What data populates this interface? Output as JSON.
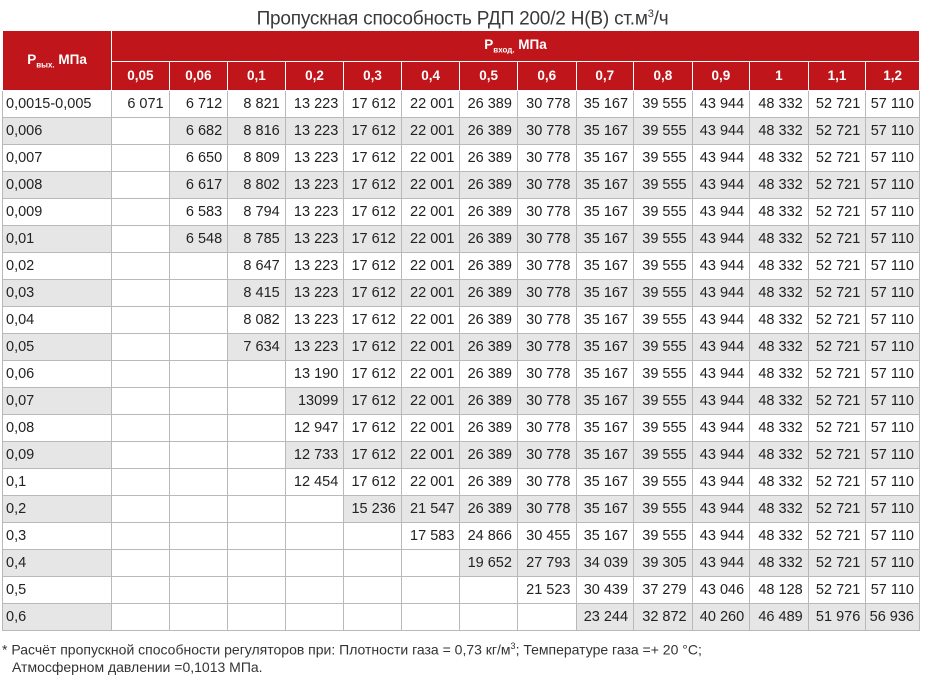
{
  "title": {
    "text": "Пропускная способность РДП 200/2 Н(В) ст.м",
    "sup": "3",
    "suffix": "/ч"
  },
  "table": {
    "row_header": {
      "main": "Р",
      "sub": "вых.",
      "unit": " МПа"
    },
    "group_header": {
      "main": "Р",
      "sub": "вход.",
      "unit": " МПа"
    },
    "columns": [
      "0,05",
      "0,06",
      "0,1",
      "0,2",
      "0,3",
      "0,4",
      "0,5",
      "0,6",
      "0,7",
      "0,8",
      "0,9",
      "1",
      "1,1",
      "1,2"
    ],
    "rows": [
      {
        "label": "0,0015-0,005",
        "values": [
          "6 071",
          "6 712",
          "8 821",
          "13 223",
          "17 612",
          "22 001",
          "26 389",
          "30 778",
          "35 167",
          "39 555",
          "43 944",
          "48 332",
          "52 721",
          "57 110"
        ]
      },
      {
        "label": "0,006",
        "values": [
          "",
          "6 682",
          "8 816",
          "13 223",
          "17 612",
          "22 001",
          "26 389",
          "30 778",
          "35 167",
          "39 555",
          "43 944",
          "48 332",
          "52 721",
          "57 110"
        ]
      },
      {
        "label": "0,007",
        "values": [
          "",
          "6 650",
          "8 809",
          "13 223",
          "17 612",
          "22 001",
          "26 389",
          "30 778",
          "35 167",
          "39 555",
          "43 944",
          "48 332",
          "52 721",
          "57 110"
        ]
      },
      {
        "label": "0,008",
        "values": [
          "",
          "6 617",
          "8 802",
          "13 223",
          "17 612",
          "22 001",
          "26 389",
          "30 778",
          "35 167",
          "39 555",
          "43 944",
          "48 332",
          "52 721",
          "57 110"
        ]
      },
      {
        "label": "0,009",
        "values": [
          "",
          "6 583",
          "8 794",
          "13 223",
          "17 612",
          "22 001",
          "26 389",
          "30 778",
          "35 167",
          "39 555",
          "43 944",
          "48 332",
          "52 721",
          "57 110"
        ]
      },
      {
        "label": "0,01",
        "values": [
          "",
          "6 548",
          "8 785",
          "13 223",
          "17 612",
          "22 001",
          "26 389",
          "30 778",
          "35 167",
          "39 555",
          "43 944",
          "48 332",
          "52 721",
          "57 110"
        ]
      },
      {
        "label": "0,02",
        "values": [
          "",
          "",
          "8 647",
          "13 223",
          "17 612",
          "22 001",
          "26 389",
          "30 778",
          "35 167",
          "39 555",
          "43 944",
          "48 332",
          "52 721",
          "57 110"
        ]
      },
      {
        "label": "0,03",
        "values": [
          "",
          "",
          "8 415",
          "13 223",
          "17 612",
          "22 001",
          "26 389",
          "30 778",
          "35 167",
          "39 555",
          "43 944",
          "48 332",
          "52 721",
          "57 110"
        ]
      },
      {
        "label": "0,04",
        "values": [
          "",
          "",
          "8 082",
          "13 223",
          "17 612",
          "22 001",
          "26 389",
          "30 778",
          "35 167",
          "39 555",
          "43 944",
          "48 332",
          "52 721",
          "57 110"
        ]
      },
      {
        "label": "0,05",
        "values": [
          "",
          "",
          "7 634",
          "13 223",
          "17 612",
          "22 001",
          "26 389",
          "30 778",
          "35 167",
          "39 555",
          "43 944",
          "48 332",
          "52 721",
          "57 110"
        ]
      },
      {
        "label": "0,06",
        "values": [
          "",
          "",
          "",
          "13 190",
          "17 612",
          "22 001",
          "26 389",
          "30 778",
          "35 167",
          "39 555",
          "43 944",
          "48 332",
          "52 721",
          "57 110"
        ]
      },
      {
        "label": "0,07",
        "values": [
          "",
          "",
          "",
          "13099",
          "17 612",
          "22 001",
          "26 389",
          "30 778",
          "35 167",
          "39 555",
          "43 944",
          "48 332",
          "52 721",
          "57 110"
        ]
      },
      {
        "label": "0,08",
        "values": [
          "",
          "",
          "",
          "12 947",
          "17 612",
          "22 001",
          "26 389",
          "30 778",
          "35 167",
          "39 555",
          "43 944",
          "48 332",
          "52 721",
          "57 110"
        ]
      },
      {
        "label": "0,09",
        "values": [
          "",
          "",
          "",
          "12 733",
          "17 612",
          "22 001",
          "26 389",
          "30 778",
          "35 167",
          "39 555",
          "43 944",
          "48 332",
          "52 721",
          "57 110"
        ]
      },
      {
        "label": "0,1",
        "values": [
          "",
          "",
          "",
          "12 454",
          "17 612",
          "22 001",
          "26 389",
          "30 778",
          "35 167",
          "39 555",
          "43 944",
          "48 332",
          "52 721",
          "57 110"
        ]
      },
      {
        "label": "0,2",
        "values": [
          "",
          "",
          "",
          "",
          "15 236",
          "21 547",
          "26 389",
          "30 778",
          "35 167",
          "39 555",
          "43 944",
          "48 332",
          "52 721",
          "57 110"
        ]
      },
      {
        "label": "0,3",
        "values": [
          "",
          "",
          "",
          "",
          "",
          "17 583",
          "24 866",
          "30 455",
          "35 167",
          "39 555",
          "43 944",
          "48 332",
          "52 721",
          "57 110"
        ]
      },
      {
        "label": "0,4",
        "values": [
          "",
          "",
          "",
          "",
          "",
          "",
          "19 652",
          "27 793",
          "34 039",
          "39 305",
          "43 944",
          "48 332",
          "52 721",
          "57 110"
        ]
      },
      {
        "label": "0,5",
        "values": [
          "",
          "",
          "",
          "",
          "",
          "",
          "",
          "21 523",
          "30 439",
          "37 279",
          "43 046",
          "48 128",
          "52 721",
          "57 110"
        ]
      },
      {
        "label": "0,6",
        "values": [
          "",
          "",
          "",
          "",
          "",
          "",
          "",
          "",
          "23 244",
          "32 872",
          "40 260",
          "46 489",
          "51 976",
          "56 936"
        ]
      }
    ]
  },
  "footnote": {
    "line1_prefix": "* Расчёт пропускной способности регуляторов при: Плотности газа = 0,73 кг/м",
    "line1_sup": "3",
    "line1_suffix": "; Температуре газа =+ 20 °С;",
    "line2": "Атмосферном давлении =0,1013 МПа."
  },
  "colors": {
    "header_bg": "#c0161b",
    "stripe": "#e6e6e6"
  }
}
